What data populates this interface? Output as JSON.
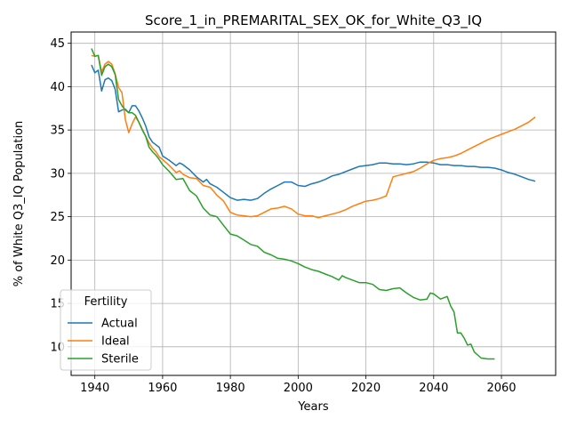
{
  "chart_data": {
    "type": "line",
    "title": "Score_1_in_PREMARITAL_SEX_OK_for_White_Q3_IQ",
    "xlabel": "Years",
    "ylabel": "% of White Q3_IQ Population",
    "xlim": [
      1933,
      2076
    ],
    "ylim": [
      6.7,
      46.3
    ],
    "xticks": [
      1940,
      1960,
      1980,
      2000,
      2020,
      2040,
      2060
    ],
    "yticks": [
      10,
      15,
      20,
      25,
      30,
      35,
      40,
      45
    ],
    "grid": true,
    "legend": {
      "title": "Fertility",
      "placement": "lower-left"
    },
    "series": [
      {
        "name": "Actual",
        "color": "#1f77b4",
        "x": [
          1939,
          1940,
          1941,
          1942,
          1943,
          1944,
          1945,
          1946,
          1947,
          1948,
          1949,
          1950,
          1951,
          1952,
          1953,
          1954,
          1955,
          1956,
          1957,
          1958,
          1959,
          1960,
          1962,
          1964,
          1965,
          1966,
          1968,
          1970,
          1972,
          1973,
          1974,
          1976,
          1978,
          1980,
          1982,
          1984,
          1986,
          1988,
          1990,
          1992,
          1994,
          1996,
          1998,
          2000,
          2002,
          2004,
          2006,
          2008,
          2010,
          2012,
          2014,
          2016,
          2018,
          2020,
          2022,
          2024,
          2026,
          2028,
          2030,
          2032,
          2034,
          2036,
          2038,
          2040,
          2042,
          2044,
          2046,
          2048,
          2050,
          2052,
          2054,
          2056,
          2058,
          2060,
          2062,
          2064,
          2066,
          2068,
          2070
        ],
        "values": [
          42.5,
          41.6,
          41.9,
          39.5,
          40.8,
          41.0,
          40.7,
          39.7,
          37.1,
          37.3,
          37.4,
          37.0,
          37.8,
          37.8,
          37.2,
          36.4,
          35.5,
          34.2,
          33.6,
          33.3,
          33.0,
          32.0,
          31.5,
          30.9,
          31.2,
          31.0,
          30.4,
          29.6,
          29.0,
          29.3,
          28.8,
          28.4,
          27.8,
          27.2,
          26.9,
          27.0,
          26.9,
          27.1,
          27.7,
          28.2,
          28.6,
          29.0,
          29.0,
          28.6,
          28.5,
          28.8,
          29.0,
          29.3,
          29.7,
          29.9,
          30.2,
          30.5,
          30.8,
          30.9,
          31.0,
          31.2,
          31.2,
          31.1,
          31.1,
          31.0,
          31.1,
          31.3,
          31.3,
          31.2,
          31.0,
          31.0,
          30.9,
          30.9,
          30.8,
          30.8,
          30.7,
          30.7,
          30.6,
          30.4,
          30.1,
          29.9,
          29.6,
          29.3,
          29.1
        ]
      },
      {
        "name": "Ideal",
        "color": "#ff7f0e",
        "x": [
          1939,
          1940,
          1941,
          1942,
          1943,
          1944,
          1945,
          1946,
          1947,
          1948,
          1949,
          1950,
          1951,
          1952,
          1953,
          1954,
          1955,
          1956,
          1957,
          1958,
          1959,
          1960,
          1962,
          1964,
          1965,
          1966,
          1968,
          1970,
          1972,
          1974,
          1976,
          1978,
          1980,
          1982,
          1984,
          1986,
          1988,
          1990,
          1992,
          1994,
          1996,
          1998,
          2000,
          2002,
          2004,
          2006,
          2008,
          2010,
          2012,
          2014,
          2016,
          2018,
          2020,
          2022,
          2024,
          2026,
          2028,
          2030,
          2032,
          2034,
          2036,
          2038,
          2040,
          2042,
          2044,
          2046,
          2048,
          2050,
          2052,
          2054,
          2056,
          2058,
          2060,
          2062,
          2064,
          2066,
          2068,
          2070
        ],
        "values": [
          43.6,
          43.5,
          43.6,
          41.7,
          42.6,
          42.9,
          42.6,
          41.5,
          39.9,
          39.3,
          36.2,
          34.7,
          35.7,
          36.5,
          35.9,
          35.1,
          34.3,
          33.5,
          32.9,
          32.5,
          31.9,
          31.6,
          30.9,
          30.1,
          30.3,
          29.9,
          29.5,
          29.4,
          28.6,
          28.4,
          27.5,
          26.8,
          25.5,
          25.2,
          25.1,
          25.0,
          25.1,
          25.5,
          25.9,
          26.0,
          26.2,
          25.9,
          25.3,
          25.1,
          25.1,
          24.9,
          25.1,
          25.3,
          25.5,
          25.8,
          26.2,
          26.5,
          26.8,
          26.9,
          27.1,
          27.4,
          29.6,
          29.8,
          30.0,
          30.2,
          30.6,
          31.1,
          31.5,
          31.7,
          31.8,
          32.0,
          32.3,
          32.7,
          33.1,
          33.5,
          33.9,
          34.2,
          34.5,
          34.8,
          35.1,
          35.5,
          35.9,
          36.5
        ]
      },
      {
        "name": "Sterile",
        "color": "#2ca02c",
        "x": [
          1939,
          1940,
          1941,
          1942,
          1943,
          1944,
          1945,
          1946,
          1947,
          1948,
          1949,
          1950,
          1951,
          1952,
          1953,
          1954,
          1955,
          1956,
          1957,
          1958,
          1959,
          1960,
          1962,
          1964,
          1966,
          1968,
          1970,
          1972,
          1974,
          1976,
          1978,
          1980,
          1982,
          1984,
          1986,
          1988,
          1990,
          1992,
          1994,
          1996,
          1998,
          2000,
          2002,
          2004,
          2006,
          2008,
          2010,
          2012,
          2013,
          2014,
          2016,
          2018,
          2020,
          2022,
          2024,
          2026,
          2028,
          2030,
          2032,
          2034,
          2036,
          2038,
          2039,
          2040,
          2042,
          2044,
          2045,
          2046,
          2047,
          2048,
          2049,
          2050,
          2051,
          2052,
          2054,
          2056,
          2058
        ],
        "values": [
          44.4,
          43.5,
          43.6,
          41.3,
          42.3,
          42.6,
          42.3,
          41.4,
          38.5,
          37.8,
          37.3,
          37.0,
          37.0,
          36.7,
          35.9,
          35.0,
          34.3,
          33.0,
          32.5,
          32.1,
          31.6,
          31.0,
          30.2,
          29.3,
          29.4,
          28.0,
          27.4,
          26.0,
          25.2,
          25.0,
          24.0,
          23.0,
          22.8,
          22.3,
          21.8,
          21.6,
          20.9,
          20.6,
          20.2,
          20.1,
          19.9,
          19.6,
          19.2,
          18.9,
          18.7,
          18.4,
          18.1,
          17.7,
          18.2,
          18.0,
          17.7,
          17.4,
          17.4,
          17.2,
          16.6,
          16.5,
          16.7,
          16.8,
          16.2,
          15.7,
          15.4,
          15.5,
          16.2,
          16.1,
          15.5,
          15.8,
          14.7,
          14.0,
          11.6,
          11.6,
          11.0,
          10.2,
          10.3,
          9.4,
          8.7,
          8.6,
          8.6
        ]
      }
    ]
  }
}
